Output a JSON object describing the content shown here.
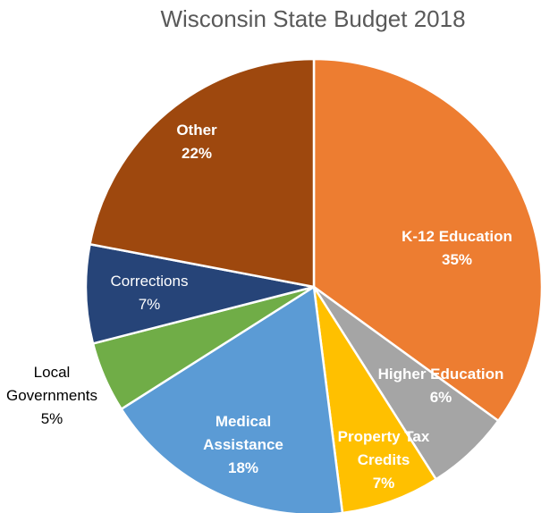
{
  "chart_data": {
    "type": "pie",
    "title": "Wisconsin State Budget 2018",
    "slices": [
      {
        "label": "K-12 Education",
        "label_lines": [
          "K-12 Education"
        ],
        "value": 35,
        "value_text": "35%",
        "color": "#ED7D31",
        "label_color": "#ffffff"
      },
      {
        "label": "Higher Education",
        "label_lines": [
          "Higher Education"
        ],
        "value": 6,
        "value_text": "6%",
        "color": "#A5A5A5",
        "label_color": "#ffffff"
      },
      {
        "label": "Property Tax Credits",
        "label_lines": [
          "Property Tax",
          "Credits"
        ],
        "value": 7,
        "value_text": "7%",
        "color": "#FFC000",
        "label_color": "#ffffff"
      },
      {
        "label": "Medical Assistance",
        "label_lines": [
          "Medical",
          "Assistance"
        ],
        "value": 18,
        "value_text": "18%",
        "color": "#5B9BD5",
        "label_color": "#ffffff"
      },
      {
        "label": "Local Governments",
        "label_lines": [
          "Local",
          "Governments"
        ],
        "value": 5,
        "value_text": "5%",
        "color": "#70AD47",
        "label_color": "#000000"
      },
      {
        "label": "Corrections",
        "label_lines": [
          "Corrections"
        ],
        "value": 7,
        "value_text": "7%",
        "color": "#264478",
        "label_color": "#ffffff"
      },
      {
        "label": "Other",
        "label_lines": [
          "Other"
        ],
        "value": 22,
        "value_text": "22%",
        "color": "#9E480E",
        "label_color": "#ffffff"
      }
    ],
    "start_angle_deg": 0,
    "direction": "clockwise"
  }
}
